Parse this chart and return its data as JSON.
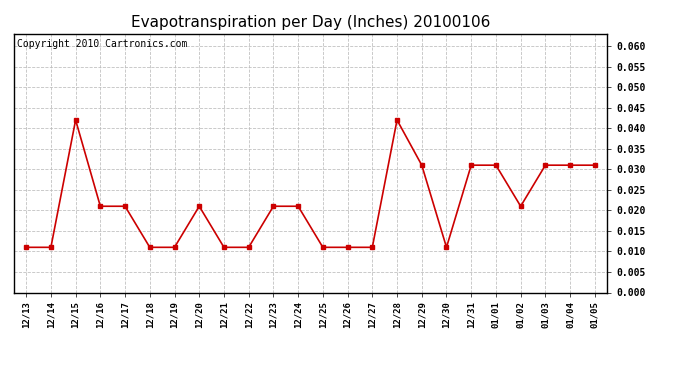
{
  "title": "Evapotranspiration per Day (Inches) 20100106",
  "copyright_text": "Copyright 2010 Cartronics.com",
  "x_labels": [
    "12/13",
    "12/14",
    "12/15",
    "12/16",
    "12/17",
    "12/18",
    "12/19",
    "12/20",
    "12/21",
    "12/22",
    "12/23",
    "12/24",
    "12/25",
    "12/26",
    "12/27",
    "12/28",
    "12/29",
    "12/30",
    "12/31",
    "01/01",
    "01/02",
    "01/03",
    "01/04",
    "01/05"
  ],
  "y_values": [
    0.011,
    0.011,
    0.042,
    0.021,
    0.021,
    0.011,
    0.011,
    0.021,
    0.011,
    0.011,
    0.021,
    0.021,
    0.011,
    0.011,
    0.011,
    0.042,
    0.031,
    0.011,
    0.031,
    0.031,
    0.021,
    0.031,
    0.031,
    0.031
  ],
  "line_color": "#cc0000",
  "marker": "s",
  "marker_size": 3,
  "ylim": [
    0.0,
    0.063
  ],
  "ytick_min": 0.0,
  "ytick_max": 0.06,
  "ytick_step": 0.005,
  "background_color": "#ffffff",
  "grid_color": "#bbbbbb",
  "title_fontsize": 11,
  "copyright_fontsize": 7
}
